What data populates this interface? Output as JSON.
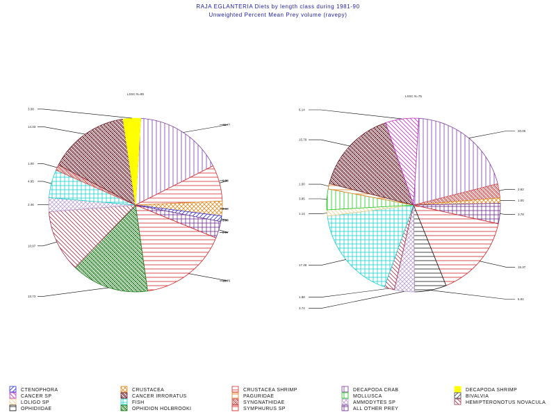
{
  "title": "RAJA EGLANTERIA Diets by length class during 1981-90",
  "subtitle": "Unweighted Percent Mean Prey volume (ravepy)",
  "chart_data": {
    "type": "pie",
    "prey": [
      {
        "key": "cten",
        "name": "CTENOPHORA",
        "color": "#2b2bd6",
        "pattern": "slash"
      },
      {
        "key": "crus",
        "name": "CRUSTACEA",
        "color": "#e08a1e",
        "pattern": "cross"
      },
      {
        "key": "shrimp",
        "name": "CRUSTACEA SHRIMP",
        "color": "#d42a2a",
        "pattern": "horiz"
      },
      {
        "key": "crab",
        "name": "DECAPODA CRAB",
        "color": "#7a3aa6",
        "pattern": "vert"
      },
      {
        "key": "dshrimp",
        "name": "DECAPODA SHRIMP",
        "color": "#ffff00",
        "pattern": "solid"
      },
      {
        "key": "cancer",
        "name": "CANCER SP",
        "color": "#c030c0",
        "pattern": "back"
      },
      {
        "key": "irror",
        "name": "CANCER IRRORATUS",
        "color": "#6b1f2a",
        "pattern": "xhatch"
      },
      {
        "key": "pagur",
        "name": "PAGURIDAE",
        "color": "#e07a1a",
        "pattern": "horiz"
      },
      {
        "key": "moll",
        "name": "MOLLUSCA",
        "color": "#16c816",
        "pattern": "vert"
      },
      {
        "key": "biv",
        "name": "BIVALVIA",
        "color": "#404040",
        "pattern": "slash"
      },
      {
        "key": "loligo",
        "name": "LOLIGO SP",
        "color": "#f0d08a",
        "pattern": "back"
      },
      {
        "key": "fish",
        "name": "FISH",
        "color": "#18d0d0",
        "pattern": "grid"
      },
      {
        "key": "syng",
        "name": "SYNGNATHIDAE",
        "color": "#d05050",
        "pattern": "xhatch"
      },
      {
        "key": "ammo",
        "name": "AMMODYTES SP",
        "color": "#b8a0d0",
        "pattern": "cross"
      },
      {
        "key": "hemi",
        "name": "HEMIPTERONOTUS NOVACULA",
        "color": "#a0304a",
        "pattern": "back"
      },
      {
        "key": "ophi",
        "name": "OPHIDIIDAE",
        "color": "#111111",
        "pattern": "horiz"
      },
      {
        "key": "holb",
        "name": "OPHIDION HOLBROOKI",
        "color": "#1a7a1a",
        "pattern": "xhatch"
      },
      {
        "key": "symph",
        "name": "SYMPHURUS SP",
        "color": "#d02020",
        "pattern": "horiz"
      },
      {
        "key": "other",
        "name": "ALL OTHER PREY",
        "color": "#6a2a8a",
        "pattern": "grid"
      }
    ],
    "pies": [
      {
        "label": "LSSC  N=99",
        "slices": [
          {
            "prey": "crab",
            "value": 15.77,
            "label": "15.77"
          },
          {
            "prey": "shrimp",
            "value": 6.38,
            "label": "6.38"
          },
          {
            "prey": "crus",
            "value": 2.6,
            "label": "2.60"
          },
          {
            "prey": "cten",
            "value": 1.0,
            "label": "1.00"
          },
          {
            "prey": "other",
            "value": 2.97,
            "label": "2.97"
          },
          {
            "prey": "symph",
            "value": 15.76,
            "label": "15.76"
          },
          {
            "prey": "holb",
            "value": 13.73,
            "label": "13.73"
          },
          {
            "prey": "hemi",
            "value": 10.97,
            "label": "10.97"
          },
          {
            "prey": "ammo",
            "value": 2.46,
            "label": "2.46"
          },
          {
            "prey": "fish",
            "value": 4.95,
            "label": "4.95"
          },
          {
            "prey": "syng",
            "value": 1.0,
            "label": "1.00"
          },
          {
            "prey": "irror",
            "value": 14.33,
            "label": "14.33"
          },
          {
            "prey": "dshrimp",
            "value": 3.08,
            "label": "3.08"
          }
        ]
      },
      {
        "label": "LSSC  N=75",
        "slices": [
          {
            "prey": "crab",
            "value": 20.05,
            "label": "20.05"
          },
          {
            "prey": "syng",
            "value": 2.62,
            "label": "2.62"
          },
          {
            "prey": "crus",
            "value": 1.0,
            "label": "1.00"
          },
          {
            "prey": "other",
            "value": 3.78,
            "label": "3.78"
          },
          {
            "prey": "symph",
            "value": 15.37,
            "label": "15.37"
          },
          {
            "prey": "ophi",
            "value": 5.91,
            "label": "5.91"
          },
          {
            "prey": "ammo",
            "value": 3.74,
            "label": "3.74"
          },
          {
            "prey": "hemi",
            "value": 1.88,
            "label": "1.88"
          },
          {
            "prey": "fish",
            "value": 17.48,
            "label": "17.48"
          },
          {
            "prey": "loligo",
            "value": 1.14,
            "label": "1.14"
          },
          {
            "prey": "moll",
            "value": 3.85,
            "label": "3.85"
          },
          {
            "prey": "pagur",
            "value": 1.0,
            "label": "1.00"
          },
          {
            "prey": "irror",
            "value": 15.79,
            "label": "15.79"
          },
          {
            "prey": "cancer",
            "value": 6.14,
            "label": "6.14"
          }
        ]
      }
    ]
  }
}
